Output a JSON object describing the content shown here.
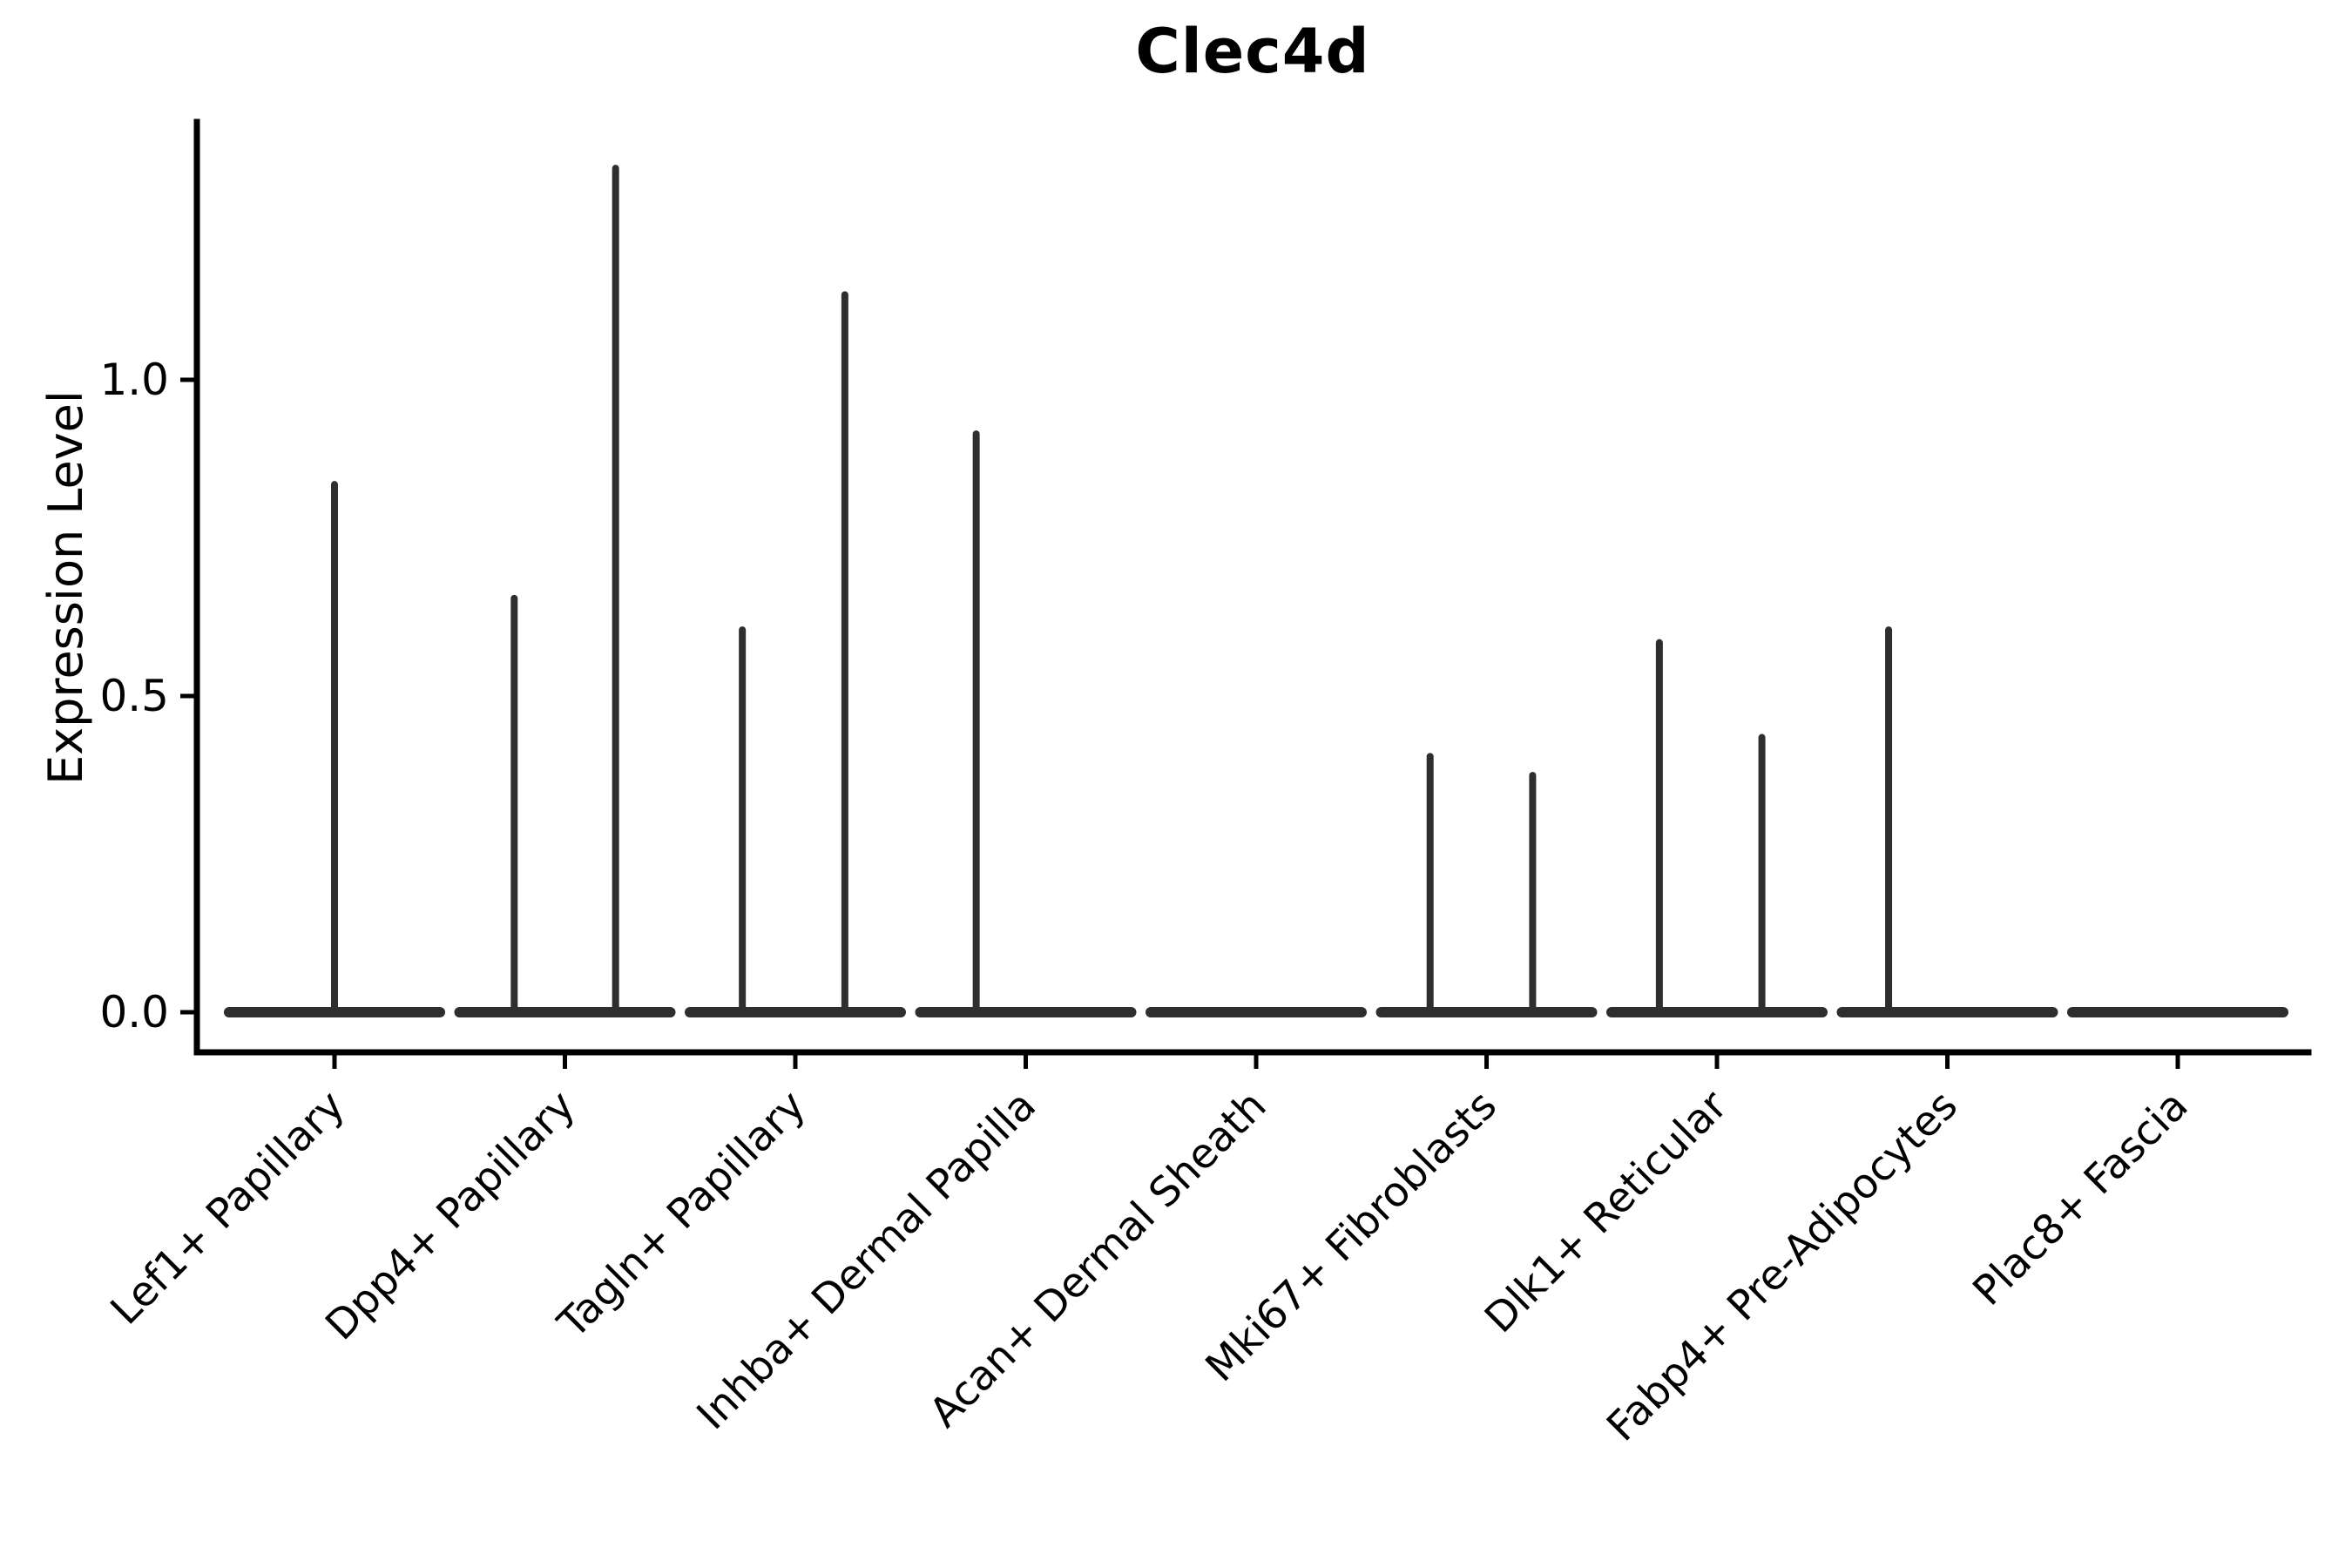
{
  "figure": {
    "title": "Clec4d"
  },
  "chart_data": {
    "type": "violin",
    "title": "Clec4d",
    "xlabel": "",
    "ylabel": "Expression Level",
    "yticks": [
      0.0,
      0.5,
      1.0
    ],
    "ytick_labels": [
      "0.0",
      "0.5",
      "1.0"
    ],
    "ylim": [
      -0.07,
      1.41
    ],
    "grid": false,
    "legend": false,
    "x_tick_rotation_deg": 45,
    "categories": [
      "Lef1+ Papillary",
      "Dpp4+ Papillary",
      "Tagln+ Papillary",
      "Inhba+ Dermal Papilla",
      "Acan+ Dermal Sheath",
      "Mki67+ Fibroblasts",
      "Dlk1+ Reticular",
      "Fabp4+ Pre-Adipocytes",
      "Plac8+ Fascia"
    ],
    "violins": [
      {
        "category": "Lef1+ Papillary",
        "baseline_value": 0.0,
        "max": 0.84,
        "spikes": [
          {
            "offset": 0.0,
            "value": 0.84
          }
        ]
      },
      {
        "category": "Dpp4+ Papillary",
        "baseline_value": 0.0,
        "max": 1.34,
        "spikes": [
          {
            "offset": -0.22,
            "value": 0.66
          },
          {
            "offset": 0.22,
            "value": 1.34
          }
        ]
      },
      {
        "category": "Tagln+ Papillary",
        "baseline_value": 0.0,
        "max": 1.14,
        "spikes": [
          {
            "offset": -0.23,
            "value": 0.61
          },
          {
            "offset": 0.215,
            "value": 1.14
          }
        ]
      },
      {
        "category": "Inhba+ Dermal Papilla",
        "baseline_value": 0.0,
        "max": 0.92,
        "spikes": [
          {
            "offset": -0.215,
            "value": 0.92
          }
        ]
      },
      {
        "category": "Acan+ Dermal Sheath",
        "baseline_value": 0.0,
        "max": 0.0,
        "spikes": []
      },
      {
        "category": "Mki67+ Fibroblasts",
        "baseline_value": 0.0,
        "max": 0.41,
        "spikes": [
          {
            "offset": -0.245,
            "value": 0.41
          },
          {
            "offset": 0.2,
            "value": 0.38
          }
        ]
      },
      {
        "category": "Dlk1+ Reticular",
        "baseline_value": 0.0,
        "max": 0.59,
        "spikes": [
          {
            "offset": -0.25,
            "value": 0.59
          },
          {
            "offset": 0.195,
            "value": 0.44
          }
        ]
      },
      {
        "category": "Fabp4+ Pre-Adipocytes",
        "baseline_value": 0.0,
        "max": 0.61,
        "spikes": [
          {
            "offset": -0.255,
            "value": 0.61
          }
        ]
      },
      {
        "category": "Plac8+ Fascia",
        "baseline_value": 0.0,
        "max": 0.0,
        "spikes": []
      }
    ],
    "colors": {
      "violin_stroke": "#2e2e2e",
      "axis": "#000000",
      "text": "#000000",
      "background": "#ffffff"
    }
  }
}
